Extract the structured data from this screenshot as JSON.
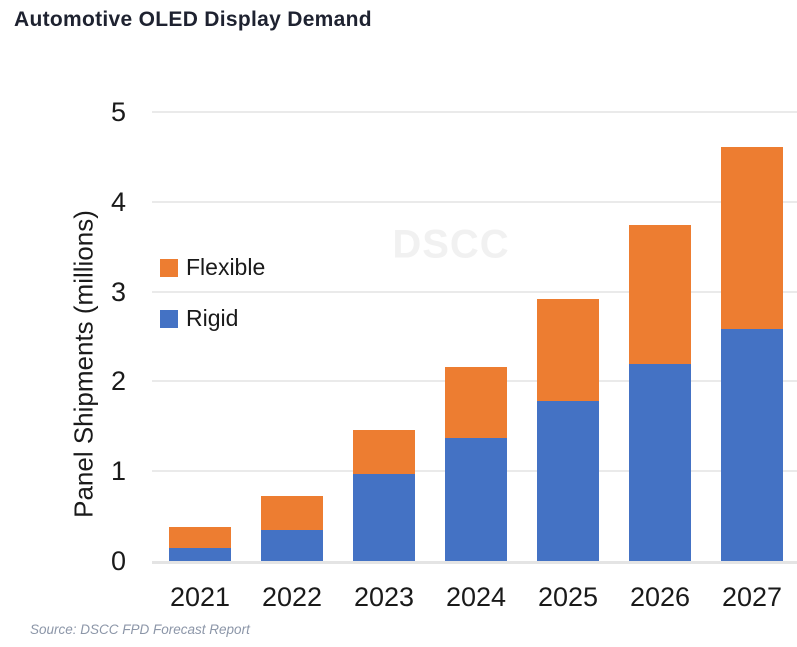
{
  "title": "Automotive OLED Display Demand",
  "source": "Source: DSCC FPD Forecast Report",
  "watermark": "DSCC",
  "colors": {
    "flexible_orange": "#ED7D31",
    "rigid_blue": "#4472C4",
    "gridline": "#EAEAEA",
    "title_text": "#1E2230",
    "source_text": "#8C96A8",
    "watermark_text": "#F1F1F1"
  },
  "chart_data": {
    "type": "bar",
    "stacked": true,
    "title": "Automotive OLED Display Demand",
    "categories": [
      "2021",
      "2022",
      "2023",
      "2024",
      "2025",
      "2026",
      "2027"
    ],
    "series": [
      {
        "name": "Flexible",
        "color": "#ED7D31",
        "values": [
          0.23,
          0.37,
          0.49,
          0.79,
          1.14,
          1.55,
          2.03
        ]
      },
      {
        "name": "Rigid",
        "color": "#4472C4",
        "values": [
          0.15,
          0.35,
          0.97,
          1.37,
          1.78,
          2.19,
          2.58
        ]
      }
    ],
    "stack_order_bottom_to_top": [
      "Rigid",
      "Flexible"
    ],
    "totals": [
      0.38,
      0.72,
      1.46,
      2.16,
      2.92,
      3.74,
      4.61
    ],
    "xlabel": "",
    "ylabel": "Panel Shipments (millions)",
    "ylim": [
      0,
      5
    ],
    "yticks": [
      0,
      1,
      2,
      3,
      4,
      5
    ],
    "grid": true,
    "legend_position": "inside-upper-left",
    "legend_entries": [
      "Flexible",
      "Rigid"
    ]
  }
}
